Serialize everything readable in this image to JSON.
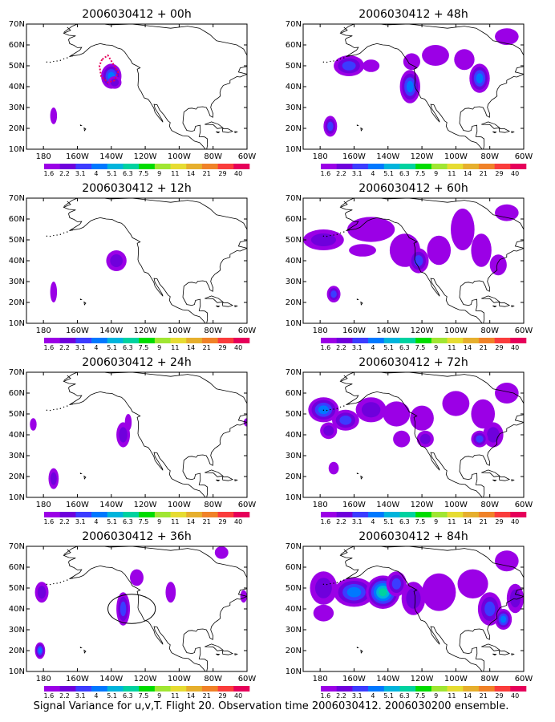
{
  "caption": "Signal Variance for u,v,T. Flight 20. Observation time 2006030412. 2006030200 ensemble.",
  "colorbar": {
    "labels": [
      "1.6",
      "2.2",
      "3.1",
      "4",
      "5.1",
      "6.3",
      "7.5",
      "9",
      "11",
      "14",
      "21",
      "29",
      "40"
    ],
    "colors": [
      "#9b00e6",
      "#6f00dc",
      "#3c3cff",
      "#0078ff",
      "#00b4dc",
      "#00d2a0",
      "#00dc00",
      "#a0e632",
      "#e6dc32",
      "#e6af2d",
      "#f08228",
      "#fa3c3c",
      "#e6005a"
    ]
  },
  "axes": {
    "lon_labels": [
      "180",
      "160W",
      "140W",
      "120W",
      "100W",
      "80W",
      "60W"
    ],
    "lat_labels": [
      "10N",
      "20N",
      "30N",
      "40N",
      "50N",
      "60N",
      "70N"
    ],
    "lon_range": [
      -190,
      -60
    ],
    "lat_range": [
      10,
      70
    ]
  },
  "panels": [
    {
      "id": "p00",
      "title": "2006030412 + 00h",
      "col": 0,
      "row": 0
    },
    {
      "id": "p48",
      "title": "2006030412 + 48h",
      "col": 1,
      "row": 0
    },
    {
      "id": "p12",
      "title": "2006030412 + 12h",
      "col": 0,
      "row": 1
    },
    {
      "id": "p60",
      "title": "2006030412 + 60h",
      "col": 1,
      "row": 1
    },
    {
      "id": "p24",
      "title": "2006030412 + 24h",
      "col": 0,
      "row": 2
    },
    {
      "id": "p72",
      "title": "2006030412 + 72h",
      "col": 1,
      "row": 2
    },
    {
      "id": "p36",
      "title": "2006030412 + 36h",
      "col": 0,
      "row": 3
    },
    {
      "id": "p84",
      "title": "2006030412 + 84h",
      "col": 1,
      "row": 3
    }
  ],
  "signal_blobs": {
    "p00": [
      [
        -174,
        26,
        2,
        4,
        1
      ],
      [
        -140,
        45,
        6,
        6,
        4
      ],
      [
        -138,
        42,
        4,
        3,
        2
      ]
    ],
    "p48": [
      [
        -174,
        21,
        4,
        5,
        3
      ],
      [
        -163,
        50,
        9,
        5,
        3
      ],
      [
        -150,
        50,
        5,
        3,
        1
      ],
      [
        -127,
        40,
        6,
        8,
        4
      ],
      [
        -112,
        55,
        8,
        5,
        1
      ],
      [
        -95,
        53,
        6,
        5,
        1
      ],
      [
        -86,
        44,
        6,
        7,
        4
      ],
      [
        -70,
        64,
        7,
        4,
        1
      ],
      [
        -126,
        52,
        5,
        4,
        1
      ]
    ],
    "p12": [
      [
        -174,
        25,
        2,
        5,
        1
      ],
      [
        -137,
        40,
        6,
        5,
        2
      ]
    ],
    "p60": [
      [
        -172,
        24,
        4,
        4,
        3
      ],
      [
        -178,
        50,
        12,
        5,
        2
      ],
      [
        -150,
        55,
        14,
        6,
        1
      ],
      [
        -130,
        45,
        9,
        8,
        1
      ],
      [
        -122,
        40,
        6,
        6,
        3
      ],
      [
        -110,
        45,
        7,
        7,
        1
      ],
      [
        -96,
        55,
        7,
        10,
        1
      ],
      [
        -85,
        45,
        6,
        8,
        1
      ],
      [
        -75,
        38,
        5,
        5,
        1
      ],
      [
        -70,
        63,
        7,
        4,
        1
      ],
      [
        -155,
        45,
        8,
        3,
        1
      ]
    ],
    "p24": [
      [
        -186,
        45,
        2,
        3,
        1
      ],
      [
        -174,
        19,
        3,
        5,
        2
      ],
      [
        -133,
        40,
        4,
        6,
        2
      ],
      [
        -130,
        46,
        2,
        4,
        1
      ],
      [
        -60,
        46,
        2,
        2,
        1
      ]
    ],
    "p72": [
      [
        -172,
        24,
        3,
        3,
        1
      ],
      [
        -178,
        52,
        9,
        6,
        4
      ],
      [
        -165,
        47,
        8,
        5,
        3
      ],
      [
        -150,
        52,
        9,
        6,
        2
      ],
      [
        -135,
        50,
        8,
        6,
        1
      ],
      [
        -120,
        48,
        7,
        6,
        1
      ],
      [
        -118,
        38,
        5,
        4,
        2
      ],
      [
        -100,
        55,
        8,
        6,
        1
      ],
      [
        -84,
        50,
        7,
        7,
        1
      ],
      [
        -78,
        40,
        6,
        6,
        2
      ],
      [
        -70,
        60,
        7,
        5,
        1
      ],
      [
        -86,
        38,
        5,
        4,
        3
      ],
      [
        -132,
        38,
        5,
        4,
        1
      ],
      [
        -175,
        42,
        5,
        4,
        2
      ]
    ],
    "p36": [
      [
        -181,
        48,
        4,
        5,
        2
      ],
      [
        -182,
        20,
        3,
        4,
        4
      ],
      [
        -133,
        40,
        4,
        8,
        3
      ],
      [
        -125,
        55,
        4,
        4,
        1
      ],
      [
        -105,
        48,
        3,
        5,
        1
      ],
      [
        -75,
        67,
        4,
        3,
        1
      ],
      [
        -62,
        46,
        2,
        3,
        1
      ]
    ],
    "p84": [
      [
        -178,
        50,
        8,
        8,
        2
      ],
      [
        -160,
        48,
        12,
        7,
        4
      ],
      [
        -143,
        48,
        10,
        8,
        6
      ],
      [
        -135,
        52,
        6,
        6,
        3
      ],
      [
        -125,
        45,
        7,
        8,
        2
      ],
      [
        -110,
        48,
        10,
        9,
        1
      ],
      [
        -90,
        52,
        9,
        7,
        1
      ],
      [
        -80,
        40,
        7,
        8,
        3
      ],
      [
        -72,
        35,
        5,
        5,
        4
      ],
      [
        -65,
        45,
        5,
        7,
        2
      ],
      [
        -70,
        63,
        7,
        5,
        1
      ],
      [
        -178,
        38,
        6,
        4,
        1
      ]
    ]
  },
  "outlines": {
    "p00_red": [
      [
        -145.5,
        53
      ],
      [
        -147,
        50
      ],
      [
        -146,
        45
      ],
      [
        -142,
        42
      ],
      [
        -138,
        43
      ],
      [
        -136,
        47
      ],
      [
        -139,
        51
      ],
      [
        -142,
        55
      ]
    ],
    "p36_circle": [
      -128,
      40,
      7
    ]
  }
}
